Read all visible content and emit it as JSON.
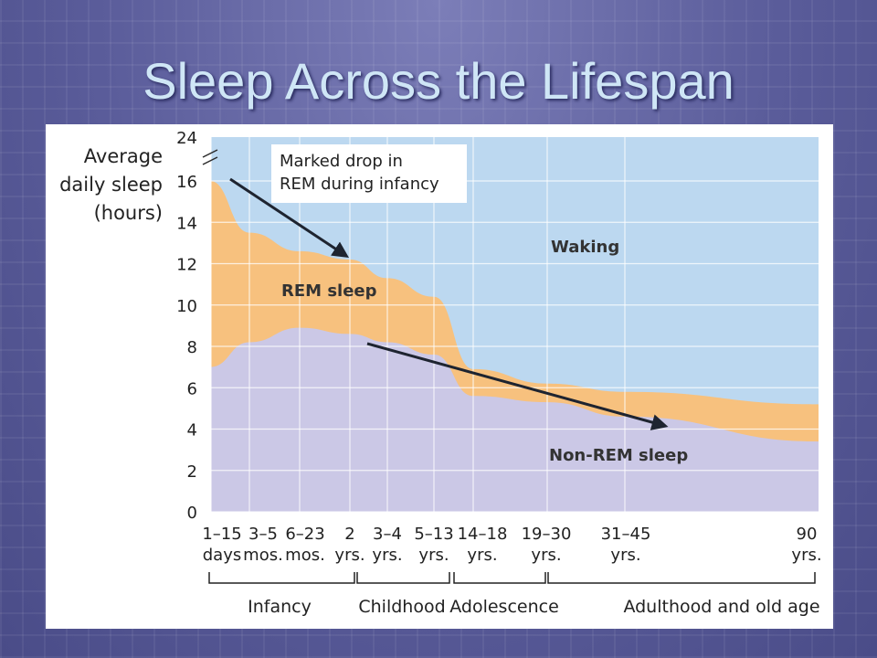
{
  "slide": {
    "title": "Sleep Across the Lifespan",
    "background_color": "#5a5c9a",
    "title_color": "#cfe6f6"
  },
  "chart_data": {
    "type": "area",
    "ylabel": [
      "Average",
      "daily sleep",
      "(hours)"
    ],
    "yticks": [
      0,
      2,
      4,
      6,
      8,
      10,
      12,
      14,
      16,
      24
    ],
    "ylim": [
      0,
      17
    ],
    "axis_break": true,
    "grid": true,
    "categories": [
      {
        "top": "1–15",
        "bottom": "days"
      },
      {
        "top": "3–5",
        "bottom": "mos."
      },
      {
        "top": "6–23",
        "bottom": "mos."
      },
      {
        "top": "2",
        "bottom": "yrs."
      },
      {
        "top": "3–4",
        "bottom": "yrs."
      },
      {
        "top": "5–13",
        "bottom": "yrs."
      },
      {
        "top": "14–18",
        "bottom": "yrs."
      },
      {
        "top": "19–30",
        "bottom": "yrs."
      },
      {
        "top": "31–45",
        "bottom": "yrs."
      },
      {
        "top": "90",
        "bottom": "yrs."
      }
    ],
    "series": [
      {
        "name": "Non-REM sleep",
        "color": "#cbc8e6",
        "values": [
          7.0,
          8.2,
          8.9,
          8.6,
          8.2,
          7.6,
          5.6,
          5.3,
          4.6,
          3.4
        ]
      },
      {
        "name": "REM sleep",
        "color": "#f7c17e",
        "values": [
          16.0,
          13.5,
          12.6,
          12.2,
          11.3,
          10.4,
          6.9,
          6.2,
          5.8,
          5.2
        ]
      },
      {
        "name": "Waking",
        "color": "#bcd8f0",
        "values": [
          24,
          24,
          24,
          24,
          24,
          24,
          24,
          24,
          24,
          24
        ]
      }
    ],
    "annotations": [
      {
        "text_lines": [
          "Marked drop in",
          "REM during infancy"
        ]
      }
    ],
    "life_stages": [
      {
        "label": "Infancy",
        "from": 0,
        "to": 3
      },
      {
        "label": "Childhood",
        "from": 3,
        "to": 5
      },
      {
        "label": "Adolescence",
        "from": 6,
        "to": 6
      },
      {
        "label": "Adulthood and old age",
        "from": 7,
        "to": 9
      }
    ],
    "colors": {
      "waking": "#bcd8f0",
      "rem": "#f7c17e",
      "nrem": "#cbc8e6",
      "grid": "#ffffff",
      "arrow": "#1e2430"
    }
  }
}
